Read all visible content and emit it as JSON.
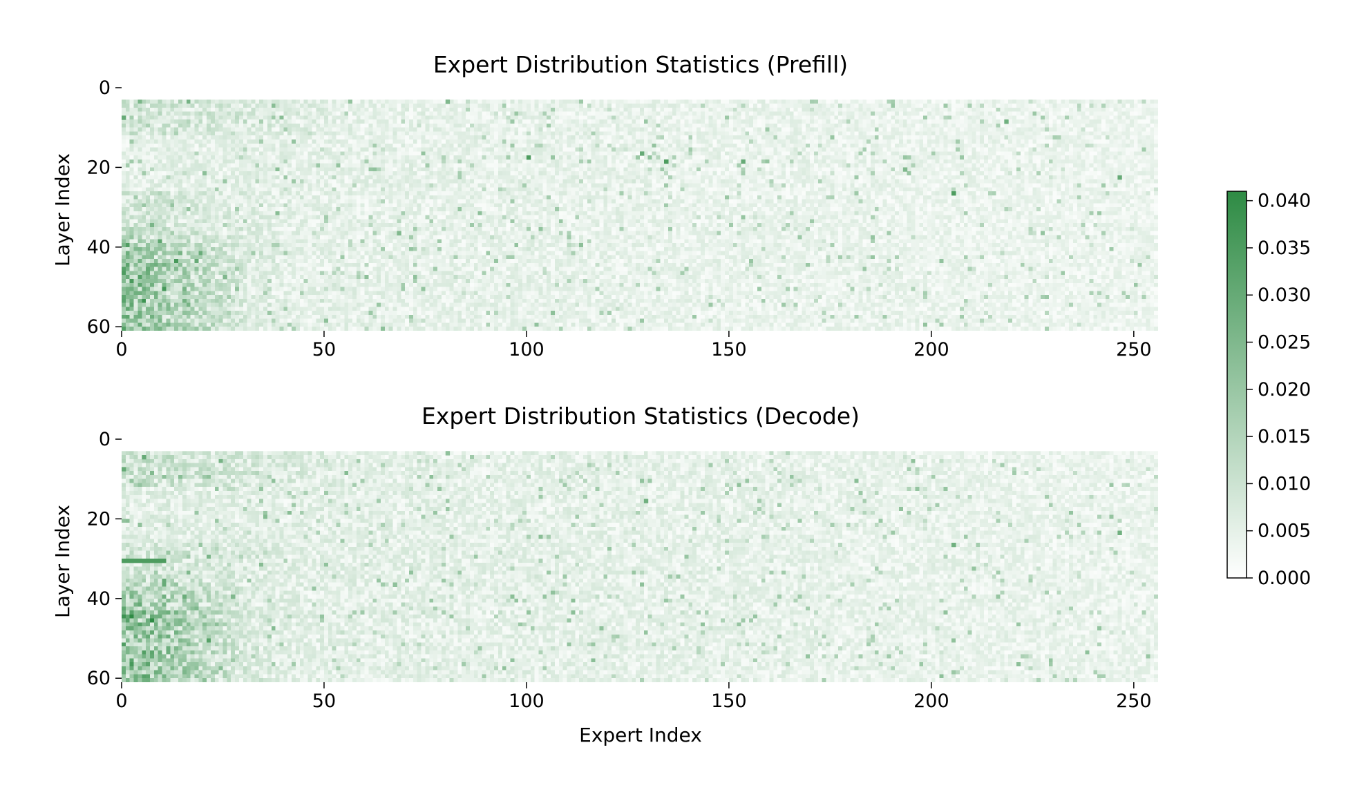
{
  "chart_data": [
    {
      "type": "heatmap",
      "title": "Expert Distribution Statistics (Prefill)",
      "xlabel": "",
      "ylabel": "Layer Index",
      "x_range": [
        0,
        256
      ],
      "y_range": [
        0,
        61
      ],
      "n_experts": 256,
      "n_layers": 58,
      "first_layer": 3,
      "xticks": [
        "0",
        "50",
        "100",
        "150",
        "200",
        "250"
      ],
      "xtick_values": [
        0,
        50,
        100,
        150,
        200,
        250
      ],
      "yticks": [
        "0",
        "20",
        "40",
        "60"
      ],
      "ytick_values": [
        0,
        20,
        40,
        60
      ],
      "value_range": [
        0.0,
        0.041
      ],
      "grid": false,
      "hotspots": [
        {
          "expert": 0,
          "layer": 7,
          "value": 0.03
        },
        {
          "expert": 80,
          "layer": 3,
          "value": 0.025
        },
        {
          "expert": 100,
          "layer": 17,
          "value": 0.035
        },
        {
          "expert": 128,
          "layer": 16,
          "value": 0.03
        },
        {
          "expert": 134,
          "layer": 18,
          "value": 0.035
        },
        {
          "expert": 153,
          "layer": 18,
          "value": 0.03
        },
        {
          "expert": 205,
          "layer": 26,
          "value": 0.035
        },
        {
          "expert": 218,
          "layer": 8,
          "value": 0.028
        },
        {
          "expert": 246,
          "layer": 22,
          "value": 0.03
        },
        {
          "expert": 193,
          "layer": 20,
          "value": 0.025
        },
        {
          "expert": 25,
          "layer": 47,
          "value": 0.025
        },
        {
          "expert": 68,
          "layer": 36,
          "value": 0.025
        }
      ]
    },
    {
      "type": "heatmap",
      "title": "Expert Distribution Statistics (Decode)",
      "xlabel": "Expert Index",
      "ylabel": "Layer Index",
      "x_range": [
        0,
        256
      ],
      "y_range": [
        0,
        61
      ],
      "n_experts": 256,
      "n_layers": 58,
      "first_layer": 3,
      "xticks": [
        "0",
        "50",
        "100",
        "150",
        "200",
        "250"
      ],
      "xtick_values": [
        0,
        50,
        100,
        150,
        200,
        250
      ],
      "yticks": [
        "0",
        "20",
        "40",
        "60"
      ],
      "ytick_values": [
        0,
        20,
        40,
        60
      ],
      "value_range": [
        0.0,
        0.041
      ],
      "grid": false,
      "hotspots": [
        {
          "expert": 0,
          "layer": 7,
          "value": 0.03
        },
        {
          "expert": 5,
          "layer": 4,
          "value": 0.03
        },
        {
          "expert": 80,
          "layer": 3,
          "value": 0.022
        },
        {
          "expert": 129,
          "layer": 15,
          "value": 0.028
        },
        {
          "expert": 205,
          "layer": 26,
          "value": 0.028
        },
        {
          "expert": 246,
          "layer": 23,
          "value": 0.028
        },
        {
          "expert": 67,
          "layer": 36,
          "value": 0.022
        },
        {
          "expert": 27,
          "layer": 39,
          "value": 0.025
        }
      ],
      "stripes": [
        {
          "layer": 30,
          "expert_from": 0,
          "expert_to": 10,
          "value": 0.035
        }
      ]
    }
  ],
  "colorbar": {
    "min": 0.0,
    "max": 0.041,
    "ticks": [
      "0.000",
      "0.005",
      "0.010",
      "0.015",
      "0.020",
      "0.025",
      "0.030",
      "0.035",
      "0.040"
    ],
    "tick_values": [
      0.0,
      0.005,
      0.01,
      0.015,
      0.02,
      0.025,
      0.03,
      0.035,
      0.04
    ],
    "color_low": "#ffffff",
    "color_high": "#2e8b44"
  }
}
